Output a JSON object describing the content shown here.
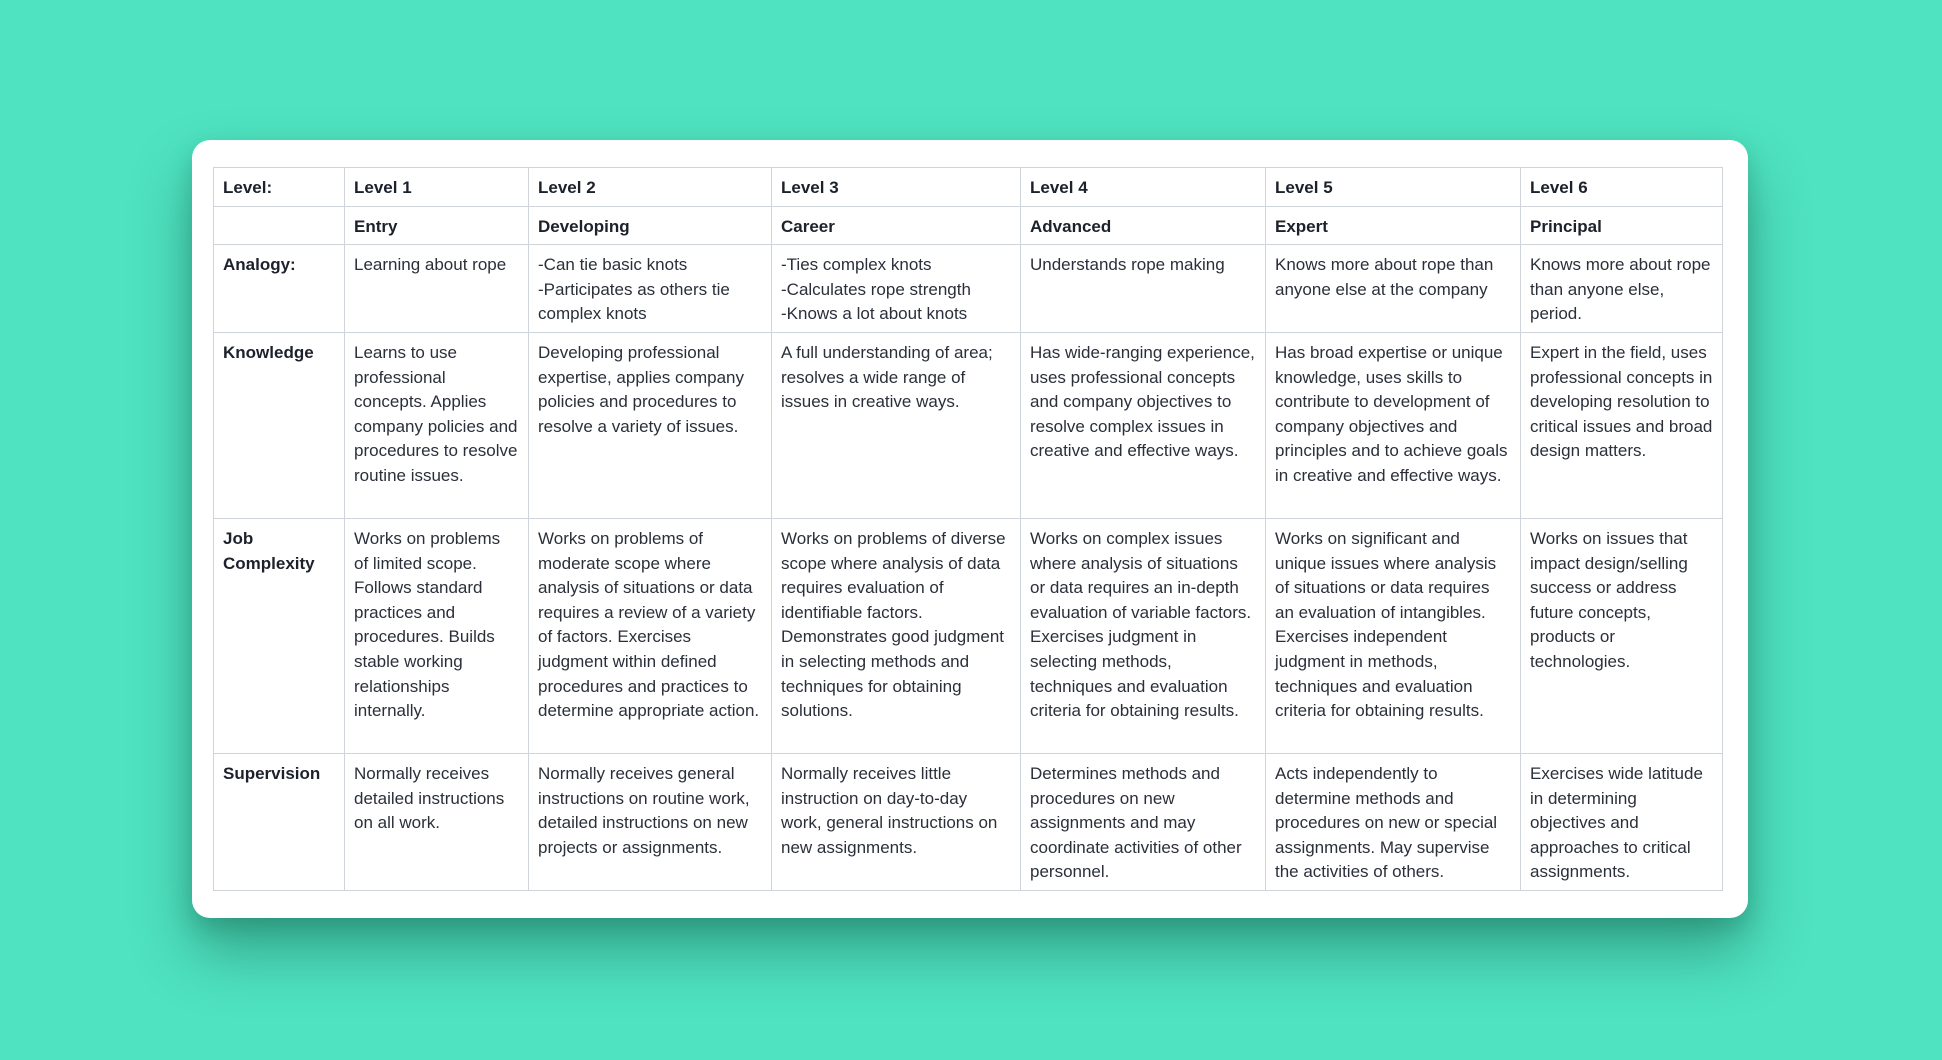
{
  "table": {
    "header_label": "Level:",
    "levels": [
      "Level 1",
      "Level 2",
      "Level 3",
      "Level 4",
      "Level 5",
      "Level 6"
    ],
    "titles": [
      "Entry",
      "Developing",
      "Career",
      "Advanced",
      "Expert",
      "Principal"
    ],
    "rows": [
      {
        "label": "Analogy:",
        "cells": [
          "Learning about rope",
          "-Can tie basic knots\n-Participates as others tie complex knots",
          "-Ties complex knots\n-Calculates rope strength\n-Knows a lot about knots",
          "Understands rope making",
          "Knows more about rope than anyone else at the company",
          "Knows more about rope than anyone else, period."
        ]
      },
      {
        "label": "Knowledge",
        "cells": [
          "Learns to use professional concepts. Applies company policies and procedures to resolve routine issues.",
          "Developing professional expertise, applies company policies and procedures to resolve a variety of issues.",
          "A full understanding of area; resolves a wide range of issues in creative ways.",
          "Has wide-ranging experience, uses professional concepts and company objectives to resolve complex issues in creative and effective ways.",
          "Has broad expertise or unique knowledge, uses skills to contribute to development of company objectives and principles and to achieve goals in creative and effective ways.",
          "Expert in the field, uses professional concepts in developing resolution to critical issues and broad design matters."
        ]
      },
      {
        "label": "Job Complexity",
        "cells": [
          "Works on problems of limited scope. Follows standard practices and procedures. Builds stable working relationships internally.",
          "Works on problems of moderate scope where analysis of situations or data requires a review of a variety of factors. Exercises judgment within defined procedures and practices to determine appropriate action.",
          "Works on problems of diverse scope where analysis of data requires evaluation of identifiable factors. Demonstrates good judgment in selecting methods and techniques for obtaining solutions.",
          "Works on complex issues where analysis of situations or data requires an in-depth evaluation of variable factors. Exercises judgment in selecting methods, techniques and evaluation criteria for obtaining results.",
          "Works on significant and unique issues where analysis of situations or data requires an evaluation of intangibles. Exercises independent judgment in methods, techniques and evaluation criteria for obtaining results.",
          "Works on issues that impact design/selling success or address future concepts, products or technologies."
        ]
      },
      {
        "label": "Supervision",
        "cells": [
          "Normally receives detailed instructions on all work.",
          "Normally receives general instructions on routine work, detailed instructions on new projects or assignments.",
          "Normally receives little instruction on day-to-day work, general instructions on new assignments.",
          "Determines methods and procedures on new assignments and may coordinate activities of other personnel.",
          "Acts independently to determine methods and procedures on new or special assignments. May supervise the activities of others.",
          "Exercises wide latitude in determining objectives and approaches to critical assignments."
        ]
      }
    ]
  }
}
